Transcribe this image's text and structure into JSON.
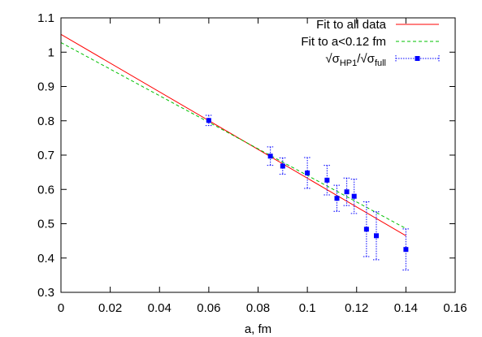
{
  "chart_data": {
    "type": "scatter",
    "xlabel": "a, fm",
    "ylabel": "",
    "xlim": [
      0,
      0.16
    ],
    "ylim": [
      0.3,
      1.1
    ],
    "xticks": [
      {
        "value": 0,
        "label": "0"
      },
      {
        "value": 0.02,
        "label": "0.02"
      },
      {
        "value": 0.04,
        "label": "0.04"
      },
      {
        "value": 0.06,
        "label": "0.06"
      },
      {
        "value": 0.08,
        "label": "0.08"
      },
      {
        "value": 0.1,
        "label": "0.1"
      },
      {
        "value": 0.12,
        "label": "0.12"
      },
      {
        "value": 0.14,
        "label": "0.14"
      },
      {
        "value": 0.16,
        "label": "0.16"
      }
    ],
    "yticks": [
      {
        "value": 0.3,
        "label": "0.3"
      },
      {
        "value": 0.4,
        "label": "0.4"
      },
      {
        "value": 0.5,
        "label": "0.5"
      },
      {
        "value": 0.6,
        "label": "0.6"
      },
      {
        "value": 0.7,
        "label": "0.7"
      },
      {
        "value": 0.8,
        "label": "0.8"
      },
      {
        "value": 0.9,
        "label": "0.9"
      },
      {
        "value": 1,
        "label": "1"
      },
      {
        "value": 1.1,
        "label": "1.1"
      }
    ],
    "grid": false,
    "legend_position": "top-right",
    "fits": [
      {
        "name": "Fit to all data",
        "color": "#ff0000",
        "dashed": false,
        "x": [
          0,
          0.14
        ],
        "y": [
          1.052,
          0.465
        ]
      },
      {
        "name": "Fit to a<0.12 fm",
        "color": "#00c000",
        "dashed": true,
        "x": [
          0,
          0.14
        ],
        "y": [
          1.028,
          0.486
        ]
      }
    ],
    "series": [
      {
        "name_main": "√σ",
        "name_sub1": "HP1",
        "name_slash": "/√σ",
        "name_sub2": "full",
        "marker_color": "#0000ff",
        "error_color": "#0000ff",
        "points": [
          {
            "x": 0.06,
            "y": 0.801,
            "err": 0.015
          },
          {
            "x": 0.085,
            "y": 0.697,
            "err": 0.027
          },
          {
            "x": 0.09,
            "y": 0.668,
            "err": 0.024
          },
          {
            "x": 0.1,
            "y": 0.648,
            "err": 0.045
          },
          {
            "x": 0.108,
            "y": 0.627,
            "err": 0.043
          },
          {
            "x": 0.112,
            "y": 0.574,
            "err": 0.038
          },
          {
            "x": 0.116,
            "y": 0.593,
            "err": 0.04
          },
          {
            "x": 0.119,
            "y": 0.58,
            "err": 0.05
          },
          {
            "x": 0.124,
            "y": 0.484,
            "err": 0.08
          },
          {
            "x": 0.128,
            "y": 0.465,
            "err": 0.07
          },
          {
            "x": 0.14,
            "y": 0.425,
            "err": 0.06
          }
        ]
      }
    ]
  }
}
